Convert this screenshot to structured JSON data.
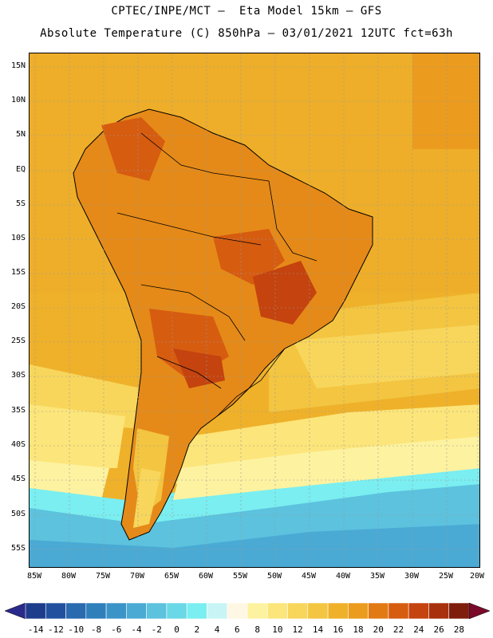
{
  "header": {
    "line1": "CPTEC/INPE/MCT –  Eta Model 15km – GFS",
    "line2": "Absolute Temperature (C) 850hPa – 03/01/2021 12UTC fct=63h"
  },
  "lat_labels": [
    "15N",
    "10N",
    "5N",
    "EQ",
    "5S",
    "10S",
    "15S",
    "20S",
    "25S",
    "30S",
    "35S",
    "40S",
    "45S",
    "50S",
    "55S"
  ],
  "lon_labels": [
    "85W",
    "80W",
    "75W",
    "70W",
    "65W",
    "60W",
    "55W",
    "50W",
    "45W",
    "40W",
    "35W",
    "30W",
    "25W",
    "20W"
  ],
  "colorbar": {
    "labels": [
      "-14",
      "-12",
      "-10",
      "-8",
      "-6",
      "-4",
      "-2",
      "0",
      "2",
      "4",
      "6",
      "8",
      "10",
      "12",
      "14",
      "16",
      "18",
      "20",
      "22",
      "24",
      "26",
      "28"
    ],
    "colors": [
      "#1e3c8c",
      "#21519e",
      "#2a6aae",
      "#2f7fbb",
      "#3b94c8",
      "#4aaad4",
      "#5cc2de",
      "#6ad8e6",
      "#7aeef0",
      "#c8f4f6",
      "#fdf7e4",
      "#fdf2a0",
      "#fce57a",
      "#f8d65c",
      "#f3c541",
      "#efb12a",
      "#eb9b1e",
      "#e27a13",
      "#d65c10",
      "#c4430e",
      "#a8300c",
      "#7e1d0c"
    ],
    "under_color": "#2a2a8c",
    "over_color": "#7a0a2a"
  }
}
